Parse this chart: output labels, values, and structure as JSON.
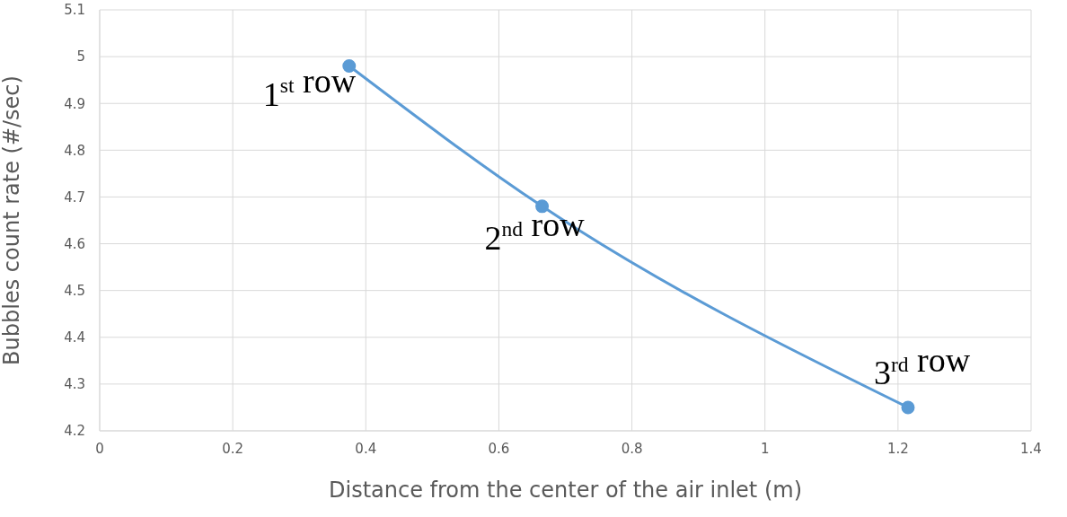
{
  "chart_data": {
    "type": "line",
    "xlabel": "Distance from the center of the air inlet (m)",
    "ylabel": "Bubbles count rate (#/sec)",
    "x": [
      0.375,
      0.665,
      1.215
    ],
    "series": [
      {
        "color": "#5b9bd5",
        "values": [
          4.98,
          4.68,
          4.25
        ]
      }
    ],
    "xlim": [
      0,
      1.4
    ],
    "xticks": [
      0,
      0.2,
      0.4,
      0.6,
      0.8,
      1,
      1.2,
      1.4
    ],
    "ylim": [
      4.2,
      5.1
    ],
    "yticks": [
      4.2,
      4.3,
      4.4,
      4.5,
      4.6,
      4.7,
      4.8,
      4.9,
      5,
      5.1
    ],
    "grid": true,
    "marker": "circle",
    "line_style": "solid",
    "legend": false,
    "annotations": [
      {
        "text": "1$^{st}$ row",
        "x": 0.375,
        "y": 4.98
      },
      {
        "text": "2$^{nd}$ row",
        "x": 0.665,
        "y": 4.68
      },
      {
        "text": "3$^{rd}$ row",
        "x": 1.215,
        "y": 4.25
      }
    ]
  }
}
